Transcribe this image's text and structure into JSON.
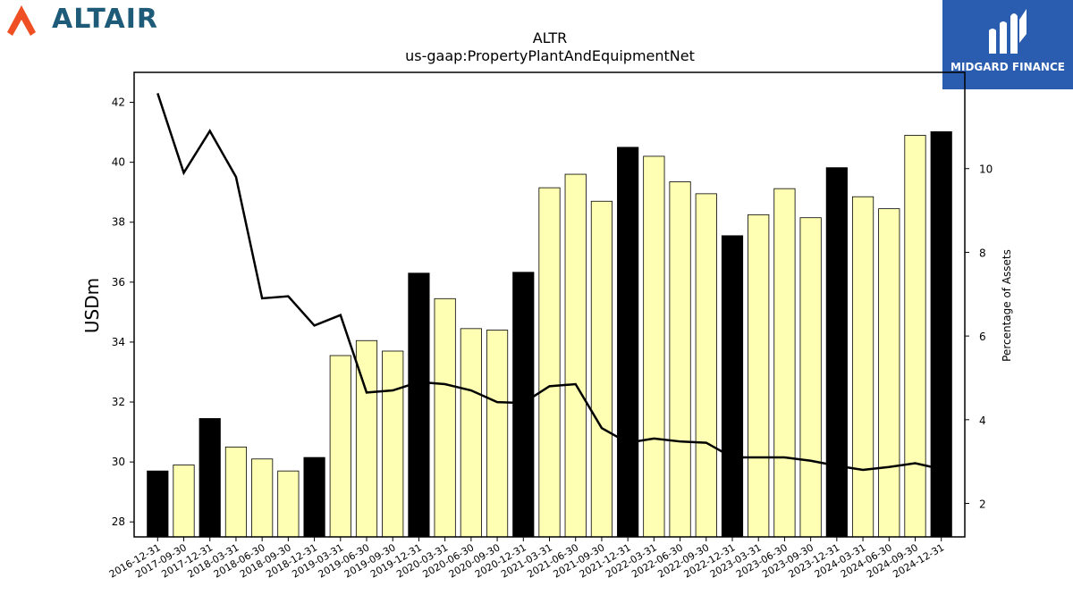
{
  "logos": {
    "left": {
      "name": "ALTAIR",
      "icon": "altair-logo-icon",
      "color": "#1d5b78",
      "accent": "#f04e23"
    },
    "right": {
      "name": "MIDGARD FINANCE",
      "icon": "midgard-logo-icon",
      "background": "#2a5db0"
    }
  },
  "chart_data": {
    "type": "bar",
    "title": "ALTR",
    "subtitle": "us-gaap:PropertyPlantAndEquipmentNet",
    "ylabel": "USDm",
    "y2label": "Percentage of Assets",
    "ylim": [
      27.5,
      43.0
    ],
    "y2lim": [
      1.2,
      12.3
    ],
    "yticks": [
      28,
      30,
      32,
      34,
      36,
      38,
      40,
      42
    ],
    "y2ticks": [
      2,
      4,
      6,
      8,
      10
    ],
    "grid": false,
    "colors": {
      "annual": "#000000",
      "quarterly": "#ffffb3",
      "line": "#000000"
    },
    "categories": [
      "2016-12-31",
      "2017-09-30",
      "2017-12-31",
      "2018-03-31",
      "2018-06-30",
      "2018-09-30",
      "2018-12-31",
      "2019-03-31",
      "2019-06-30",
      "2019-09-30",
      "2019-12-31",
      "2020-03-31",
      "2020-06-30",
      "2020-09-30",
      "2020-12-31",
      "2021-03-31",
      "2021-06-30",
      "2021-09-30",
      "2021-12-31",
      "2022-03-31",
      "2022-06-30",
      "2022-09-30",
      "2022-12-31",
      "2023-03-31",
      "2023-06-30",
      "2023-09-30",
      "2023-12-31",
      "2024-03-31",
      "2024-06-30",
      "2024-09-30",
      "2024-12-31"
    ],
    "series": [
      {
        "kind": "bar",
        "values": [
          29.7,
          29.9,
          31.45,
          30.5,
          30.1,
          29.7,
          30.15,
          33.55,
          34.05,
          33.7,
          36.3,
          35.45,
          34.45,
          34.4,
          36.33,
          39.15,
          39.6,
          38.7,
          40.5,
          40.2,
          39.35,
          38.95,
          37.55,
          38.25,
          39.12,
          38.15,
          39.82,
          38.85,
          38.45,
          40.9,
          41.02
        ],
        "annual": [
          true,
          false,
          true,
          false,
          false,
          false,
          true,
          false,
          false,
          false,
          true,
          false,
          false,
          false,
          true,
          false,
          false,
          false,
          true,
          false,
          false,
          false,
          true,
          false,
          false,
          false,
          true,
          false,
          false,
          false,
          true
        ]
      },
      {
        "kind": "line",
        "axis": "y2",
        "values": [
          11.8,
          9.9,
          10.9,
          9.8,
          6.9,
          6.95,
          6.25,
          6.5,
          4.65,
          4.7,
          4.9,
          4.85,
          4.7,
          4.42,
          4.4,
          4.8,
          4.85,
          3.8,
          3.45,
          3.55,
          3.48,
          3.45,
          3.1,
          3.1,
          3.1,
          3.02,
          2.9,
          2.8,
          2.87,
          2.96,
          2.82
        ]
      }
    ]
  }
}
